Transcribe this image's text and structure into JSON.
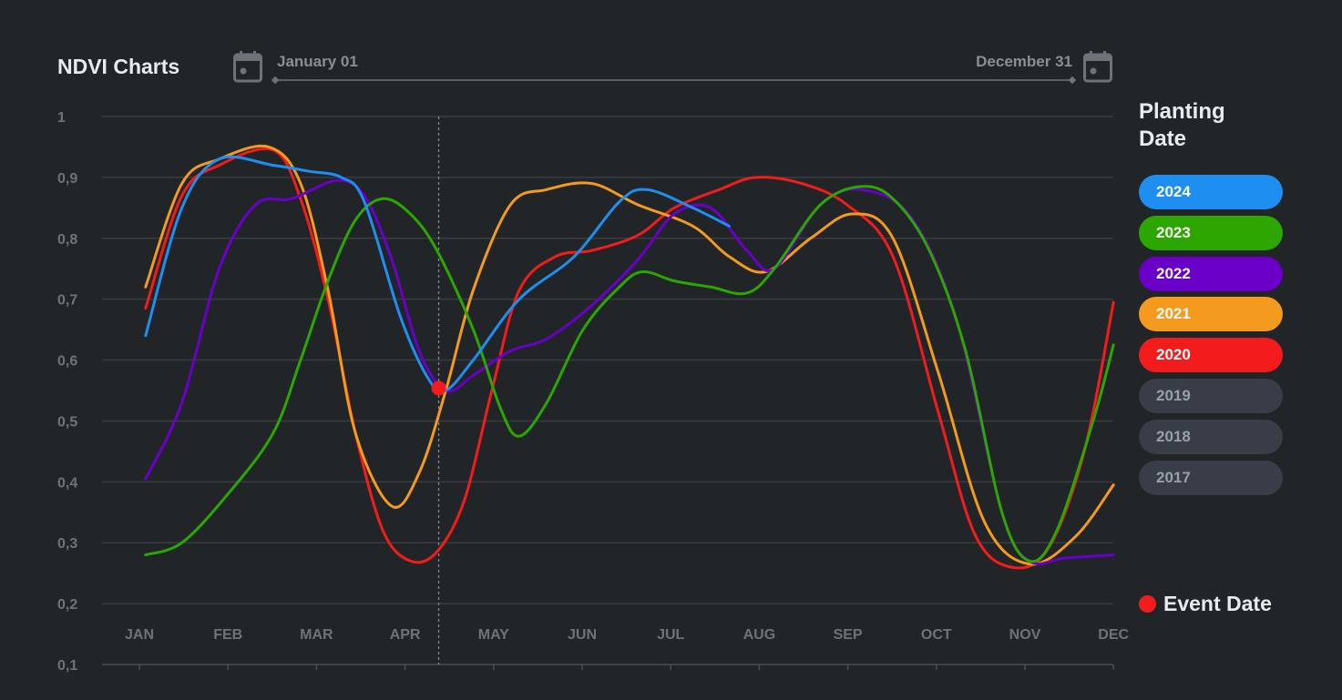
{
  "header": {
    "title": "NDVI Charts",
    "date_start": "January 01",
    "date_end": "December 31",
    "icons": [
      "calendar-icon",
      "calendar-icon"
    ]
  },
  "legend": {
    "title": "Planting Date",
    "items": [
      {
        "label": "2024",
        "color": "#1e8ff0",
        "active": true
      },
      {
        "label": "2023",
        "color": "#2ca600",
        "active": true
      },
      {
        "label": "2022",
        "color": "#6a00c8",
        "active": true
      },
      {
        "label": "2021",
        "color": "#f39a1f",
        "active": true
      },
      {
        "label": "2020",
        "color": "#f21c1c",
        "active": true
      },
      {
        "label": "2019",
        "color": "#383d47",
        "active": false
      },
      {
        "label": "2018",
        "color": "#383d47",
        "active": false
      },
      {
        "label": "2017",
        "color": "#383d47",
        "active": false
      }
    ],
    "event_label": "Event Date",
    "event_color": "#f21c1c"
  },
  "chart_data": {
    "type": "line",
    "title": "NDVI Charts",
    "x_unit": "month (1=JAN … 12=DEC)",
    "categories": [
      "JAN",
      "FEB",
      "MAR",
      "APR",
      "MAY",
      "JUN",
      "JUL",
      "AUG",
      "SEP",
      "OCT",
      "NOV",
      "DEC"
    ],
    "yticks": [
      "1",
      "0,9",
      "0,8",
      "0,7",
      "0,6",
      "0,5",
      "0,4",
      "0,3",
      "0,2",
      "0,1"
    ],
    "ylim": [
      0.1,
      1
    ],
    "xlim": [
      1,
      12
    ],
    "grid": true,
    "legend_position": "right",
    "event": {
      "x": 4.38,
      "y": 0.554,
      "color": "#f21c1c"
    },
    "series": [
      {
        "name": "2024",
        "color": "#1e8ff0",
        "points": [
          [
            1.07,
            0.64
          ],
          [
            1.48,
            0.85
          ],
          [
            1.9,
            0.93
          ],
          [
            2.51,
            0.92
          ],
          [
            2.92,
            0.91
          ],
          [
            3.28,
            0.9
          ],
          [
            3.54,
            0.86
          ],
          [
            3.95,
            0.67
          ],
          [
            4.26,
            0.57
          ],
          [
            4.46,
            0.55
          ],
          [
            4.77,
            0.6
          ],
          [
            5.29,
            0.7
          ],
          [
            5.91,
            0.77
          ],
          [
            6.42,
            0.86
          ],
          [
            6.73,
            0.88
          ],
          [
            7.25,
            0.85
          ],
          [
            7.66,
            0.82
          ]
        ]
      },
      {
        "name": "2023",
        "color": "#2ca600",
        "points": [
          [
            1.07,
            0.28
          ],
          [
            1.48,
            0.3
          ],
          [
            2,
            0.38
          ],
          [
            2.51,
            0.48
          ],
          [
            2.82,
            0.6
          ],
          [
            3.13,
            0.73
          ],
          [
            3.44,
            0.83
          ],
          [
            3.75,
            0.865
          ],
          [
            4.06,
            0.84
          ],
          [
            4.36,
            0.78
          ],
          [
            4.77,
            0.65
          ],
          [
            5.08,
            0.52
          ],
          [
            5.29,
            0.475
          ],
          [
            5.6,
            0.53
          ],
          [
            6.01,
            0.65
          ],
          [
            6.42,
            0.72
          ],
          [
            6.68,
            0.745
          ],
          [
            7.04,
            0.73
          ],
          [
            7.45,
            0.72
          ],
          [
            7.86,
            0.71
          ],
          [
            8.17,
            0.75
          ],
          [
            8.69,
            0.855
          ],
          [
            9.15,
            0.885
          ],
          [
            9.51,
            0.865
          ],
          [
            9.92,
            0.78
          ],
          [
            10.33,
            0.615
          ],
          [
            10.74,
            0.35
          ],
          [
            11.05,
            0.27
          ],
          [
            11.36,
            0.32
          ],
          [
            11.77,
            0.5
          ],
          [
            12,
            0.625
          ]
        ]
      },
      {
        "name": "2022",
        "color": "#6a00c8",
        "points": [
          [
            1.07,
            0.405
          ],
          [
            1.48,
            0.53
          ],
          [
            1.9,
            0.75
          ],
          [
            2.31,
            0.855
          ],
          [
            2.72,
            0.865
          ],
          [
            3.23,
            0.895
          ],
          [
            3.54,
            0.87
          ],
          [
            3.85,
            0.765
          ],
          [
            4.16,
            0.615
          ],
          [
            4.46,
            0.55
          ],
          [
            4.77,
            0.575
          ],
          [
            5.19,
            0.615
          ],
          [
            5.6,
            0.635
          ],
          [
            6.11,
            0.69
          ],
          [
            6.63,
            0.765
          ],
          [
            7.04,
            0.84
          ],
          [
            7.45,
            0.85
          ],
          [
            7.86,
            0.78
          ],
          [
            8.17,
            0.75
          ],
          [
            8.69,
            0.855
          ],
          [
            9.15,
            0.88
          ],
          [
            9.71,
            0.835
          ],
          [
            10.23,
            0.665
          ],
          [
            10.74,
            0.35
          ],
          [
            11.05,
            0.27
          ],
          [
            11.46,
            0.275
          ],
          [
            12,
            0.28
          ]
        ]
      },
      {
        "name": "2021",
        "color": "#f39a1f",
        "points": [
          [
            1.07,
            0.72
          ],
          [
            1.48,
            0.89
          ],
          [
            1.9,
            0.93
          ],
          [
            2.46,
            0.95
          ],
          [
            2.82,
            0.89
          ],
          [
            3.13,
            0.715
          ],
          [
            3.44,
            0.48
          ],
          [
            3.85,
            0.36
          ],
          [
            4.16,
            0.415
          ],
          [
            4.46,
            0.55
          ],
          [
            4.77,
            0.715
          ],
          [
            5.19,
            0.855
          ],
          [
            5.6,
            0.88
          ],
          [
            6.11,
            0.89
          ],
          [
            6.63,
            0.855
          ],
          [
            7.25,
            0.82
          ],
          [
            7.66,
            0.77
          ],
          [
            8.07,
            0.745
          ],
          [
            8.58,
            0.8
          ],
          [
            9.05,
            0.84
          ],
          [
            9.51,
            0.8
          ],
          [
            10.02,
            0.58
          ],
          [
            10.54,
            0.335
          ],
          [
            11.05,
            0.265
          ],
          [
            11.57,
            0.31
          ],
          [
            12,
            0.395
          ]
        ]
      },
      {
        "name": "2020",
        "color": "#f21c1c",
        "points": [
          [
            1.07,
            0.685
          ],
          [
            1.48,
            0.87
          ],
          [
            1.9,
            0.92
          ],
          [
            2.51,
            0.945
          ],
          [
            2.82,
            0.865
          ],
          [
            3.13,
            0.7
          ],
          [
            3.44,
            0.48
          ],
          [
            3.75,
            0.32
          ],
          [
            4.06,
            0.27
          ],
          [
            4.36,
            0.285
          ],
          [
            4.67,
            0.37
          ],
          [
            4.98,
            0.55
          ],
          [
            5.29,
            0.715
          ],
          [
            5.7,
            0.77
          ],
          [
            6.11,
            0.78
          ],
          [
            6.63,
            0.805
          ],
          [
            7.04,
            0.85
          ],
          [
            7.55,
            0.88
          ],
          [
            7.96,
            0.9
          ],
          [
            8.48,
            0.89
          ],
          [
            8.99,
            0.855
          ],
          [
            9.51,
            0.77
          ],
          [
            10.02,
            0.515
          ],
          [
            10.43,
            0.315
          ],
          [
            10.84,
            0.26
          ],
          [
            11.26,
            0.29
          ],
          [
            11.67,
            0.45
          ],
          [
            12,
            0.695
          ]
        ]
      }
    ]
  }
}
